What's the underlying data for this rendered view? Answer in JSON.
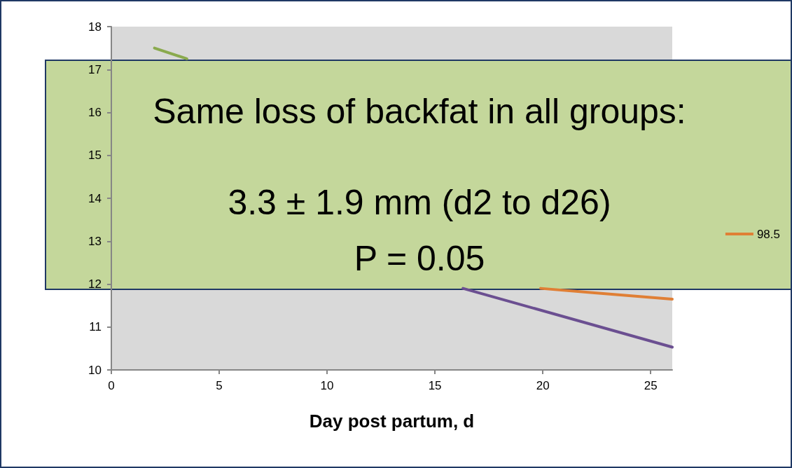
{
  "chart_data": {
    "type": "line",
    "xlabel": "Day post partum, d",
    "xlim": [
      0,
      26
    ],
    "xticks": [
      0,
      5,
      10,
      15,
      20,
      25
    ],
    "ylim": [
      10,
      18
    ],
    "yticks": [
      10,
      11,
      12,
      13,
      14,
      15,
      16,
      17,
      18
    ],
    "grid": false,
    "legend": "right",
    "marker": "none",
    "line_style": "solid",
    "series": [
      {
        "color": "#8aaa4e",
        "x": [
          2,
          3.5
        ],
        "values": [
          17.5,
          17.25
        ]
      },
      {
        "color": "#6b4f91",
        "x": [
          16.3,
          26
        ],
        "values": [
          11.9,
          10.53
        ]
      },
      {
        "name": "98.5",
        "color": "#e07f35",
        "x": [
          19.9,
          22.3,
          26
        ],
        "values": [
          11.9,
          11.8,
          11.65
        ]
      }
    ],
    "annotations": [
      "Same loss of backfat in all groups:",
      "3.3 ± 1.9 mm (d2 to d26)",
      "P = 0.05"
    ]
  }
}
